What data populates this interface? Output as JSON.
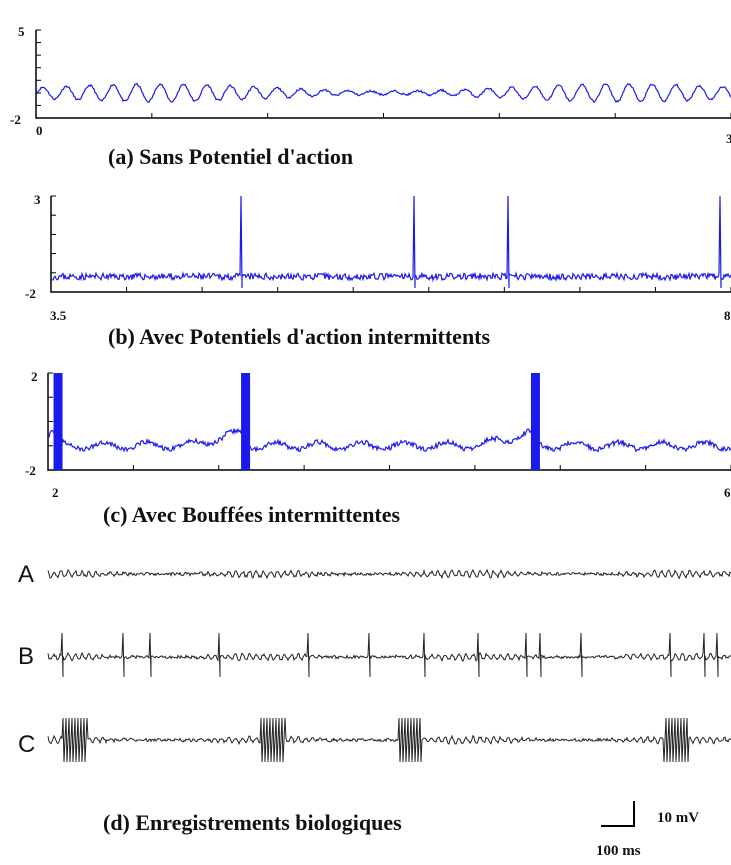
{
  "colors": {
    "sim_trace": "#1a1aee",
    "bio_trace": "#222222",
    "axis": "#000000"
  },
  "chart_data": [
    {
      "type": "line",
      "title": "(a) Sans Potentiel d'action",
      "xlim": [
        0,
        3
      ],
      "ylim": [
        -2,
        5
      ],
      "x_tick_labels": [
        "0",
        "3"
      ],
      "y_tick_labels": [
        "5",
        "-2"
      ],
      "signal": {
        "baseline": 0,
        "amplitude": 0.7,
        "spikes": [],
        "bursts": []
      },
      "grid": false
    },
    {
      "type": "line",
      "title": "(b) Avec Potentiels d'action intermittents",
      "xlim": [
        3.5,
        8
      ],
      "ylim": [
        -2,
        3
      ],
      "x_tick_labels": [
        "3.5",
        "8"
      ],
      "y_tick_labels": [
        "3",
        "-2"
      ],
      "signal": {
        "baseline": -1.2,
        "amplitude": 0.15,
        "spikes": [
          4.75,
          5.9,
          6.52,
          7.93
        ],
        "spike_peak": 3,
        "bursts": []
      },
      "grid": false
    },
    {
      "type": "line",
      "title": "(c) Avec Bouffées intermittentes",
      "xlim": [
        2,
        6
      ],
      "ylim": [
        -2,
        2
      ],
      "x_tick_labels": [
        "2",
        "6"
      ],
      "y_tick_labels": [
        "2",
        "-2"
      ],
      "signal": {
        "baseline": -1.0,
        "amplitude": 0.2,
        "spikes": [],
        "bursts": [
          2.05,
          3.15,
          4.85
        ],
        "burst_duration": 0.06
      },
      "grid": false
    },
    {
      "type": "line",
      "title": "(d) Enregistrements biologiques",
      "rows": [
        {
          "label": "A",
          "spikes": [],
          "bursts": []
        },
        {
          "label": "B",
          "spikes": [
            0.02,
            0.11,
            0.15,
            0.25,
            0.38,
            0.47,
            0.55,
            0.63,
            0.7,
            0.72,
            0.78,
            0.91,
            0.96,
            0.98
          ]
        },
        {
          "label": "C",
          "bursts": [
            0.04,
            0.33,
            0.53,
            0.92
          ]
        }
      ],
      "scale_bar": {
        "y_label": "10 mV",
        "x_label": "100 ms"
      }
    }
  ]
}
